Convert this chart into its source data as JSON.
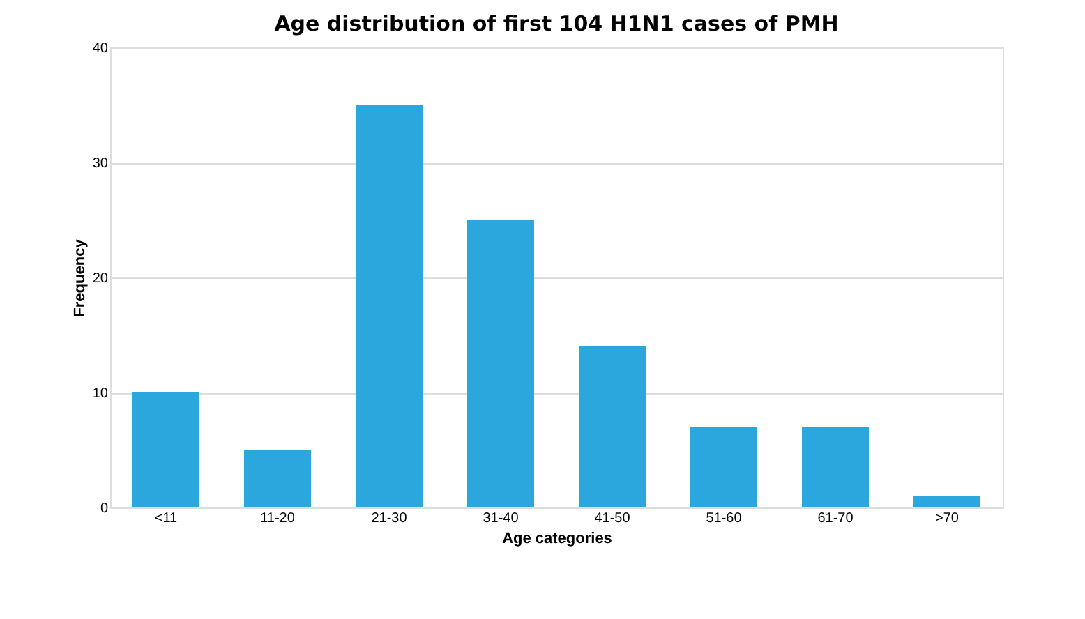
{
  "chart_data": {
    "type": "bar",
    "title": "Age distribution of first 104 H1N1 cases of PMH",
    "xlabel": "Age categories",
    "ylabel": "Frequency",
    "categories": [
      "<11",
      "11-20",
      "21-30",
      "31-40",
      "41-50",
      "51-60",
      "61-70",
      ">70"
    ],
    "values": [
      10,
      5,
      35,
      25,
      14,
      7,
      7,
      1
    ],
    "color": "#2ba7dd",
    "ylim": [
      0,
      40
    ],
    "yticks": [
      0,
      10,
      20,
      30,
      40
    ],
    "grid": "y"
  }
}
